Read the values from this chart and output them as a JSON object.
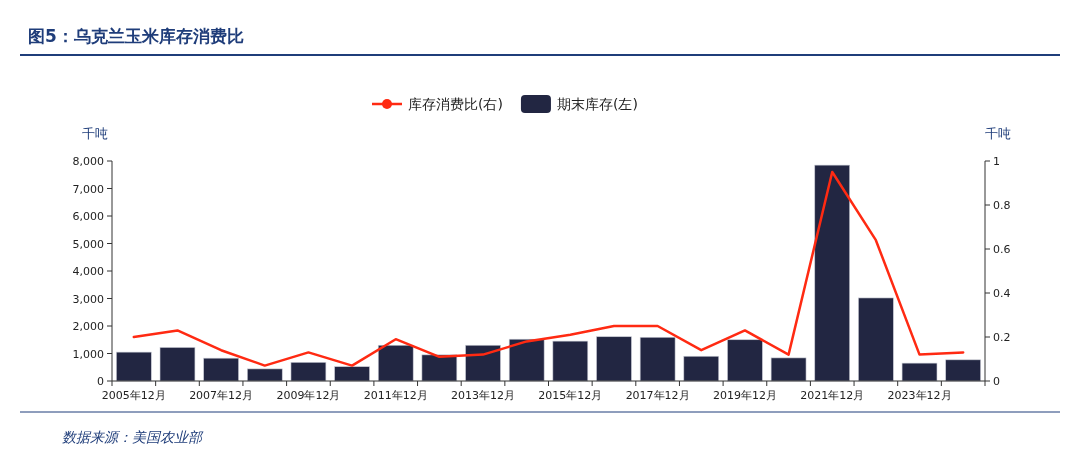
{
  "chart_data": {
    "type": "bar",
    "title": "图5：乌克兰玉米库存消费比",
    "ylabel": "千吨",
    "y2label": "千吨",
    "categories": [
      "2005年12月",
      null,
      "2007年12月",
      null,
      "2009年12月",
      null,
      "2011年12月",
      null,
      "2013年12月",
      null,
      "2015年12月",
      null,
      "2017年12月",
      null,
      "2019年12月",
      null,
      "2021年12月",
      null,
      "2023年12月",
      null
    ],
    "series": [
      {
        "name": "库存消费比(右)",
        "type": "line",
        "axis": "y2",
        "color": "#ff2a12",
        "values": [
          0.2,
          0.23,
          0.14,
          0.07,
          0.13,
          0.07,
          0.19,
          0.11,
          0.12,
          0.18,
          0.21,
          0.25,
          0.25,
          0.14,
          0.23,
          0.12,
          0.95,
          0.64,
          0.12,
          0.13
        ]
      },
      {
        "name": "期末库存(左)",
        "color": "#222642",
        "values": [
          1050,
          1220,
          830,
          440,
          680,
          520,
          1300,
          950,
          1300,
          1520,
          1450,
          1610,
          1590,
          900,
          1500,
          840,
          7850,
          3020,
          650,
          770
        ]
      }
    ],
    "ylim": [
      0,
      8000
    ],
    "yticks": [
      0,
      {
        "value": 1000,
        "label": "1,000"
      },
      {
        "value": 2000,
        "label": "2,000"
      },
      {
        "value": 3000,
        "label": "3,000"
      },
      {
        "value": 4000,
        "label": "4,000"
      },
      {
        "value": 5000,
        "label": "5,000"
      },
      {
        "value": 6000,
        "label": "6,000"
      },
      {
        "value": 7000,
        "label": "7,000"
      },
      {
        "value": 8000,
        "label": "8,000"
      }
    ],
    "y2lim": [
      0,
      1
    ],
    "y2ticks": [
      0,
      0.2,
      0.4,
      0.6,
      0.8,
      1
    ],
    "legend": "top",
    "grid": false,
    "annotations": [
      "数据来源：美国农业部"
    ]
  }
}
